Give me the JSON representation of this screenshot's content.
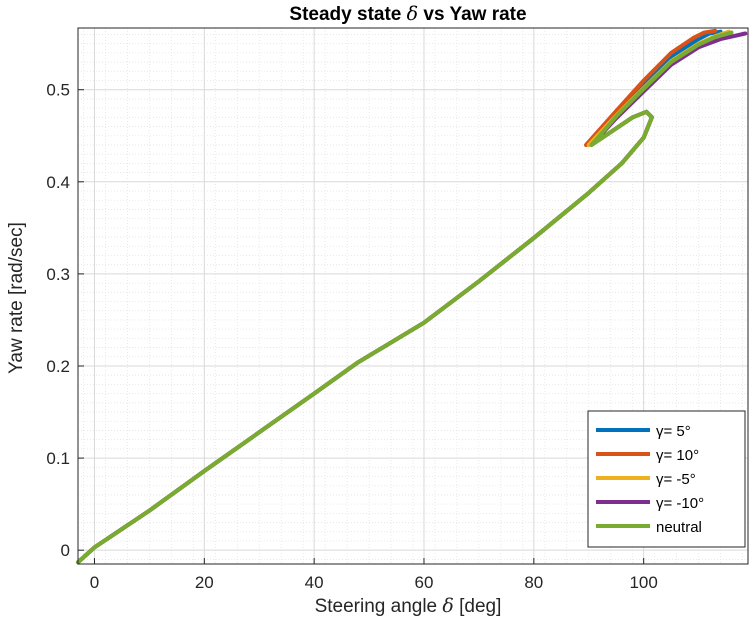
{
  "chart_data": {
    "type": "line",
    "title": "Steady state δ vs Yaw rate",
    "xlabel": "Steering angle δ [deg]",
    "ylabel": "Yaw rate [rad/sec]",
    "xlim": [
      -3,
      119
    ],
    "ylim": [
      -0.015,
      0.567
    ],
    "xticks": [
      0,
      20,
      40,
      60,
      80,
      100
    ],
    "yticks": [
      0,
      0.1,
      0.2,
      0.3,
      0.4,
      0.5
    ],
    "xtick_labels": [
      "0",
      "20",
      "40",
      "60",
      "80",
      "100"
    ],
    "ytick_labels": [
      "0",
      "0.1",
      "0.2",
      "0.3",
      "0.4",
      "0.5"
    ],
    "grid": true,
    "minor_grid": true,
    "legend_position": "bottom-right",
    "series": [
      {
        "name": "γ= 5°",
        "color": "#0072BD",
        "x": [
          -3,
          0,
          10,
          20,
          30,
          40,
          48,
          60,
          70,
          80,
          90,
          96,
          100,
          101.5,
          100.5,
          98,
          95,
          92,
          90,
          95,
          100,
          105,
          110,
          112,
          114
        ],
        "y": [
          -0.013,
          0.003,
          0.043,
          0.086,
          0.128,
          0.17,
          0.204,
          0.247,
          0.292,
          0.339,
          0.388,
          0.42,
          0.448,
          0.47,
          0.476,
          0.47,
          0.458,
          0.446,
          0.44,
          0.475,
          0.506,
          0.536,
          0.555,
          0.561,
          0.563
        ]
      },
      {
        "name": "γ= 10°",
        "color": "#D95319",
        "x": [
          -3,
          0,
          10,
          20,
          30,
          40,
          48,
          60,
          70,
          80,
          90,
          96,
          100,
          101.5,
          100.5,
          98,
          95,
          92,
          89.5,
          95,
          100,
          105,
          109,
          111,
          113
        ],
        "y": [
          -0.013,
          0.003,
          0.043,
          0.086,
          0.128,
          0.17,
          0.204,
          0.247,
          0.292,
          0.339,
          0.388,
          0.42,
          0.448,
          0.47,
          0.476,
          0.47,
          0.458,
          0.446,
          0.44,
          0.477,
          0.51,
          0.54,
          0.556,
          0.562,
          0.564
        ]
      },
      {
        "name": "γ= -5°",
        "color": "#EDB120",
        "x": [
          -3,
          0,
          10,
          20,
          30,
          40,
          48,
          60,
          70,
          80,
          90,
          96,
          100,
          101.5,
          100.5,
          98,
          95,
          92,
          90,
          95,
          100,
          105,
          110,
          113,
          115.5
        ],
        "y": [
          -0.013,
          0.003,
          0.043,
          0.086,
          0.128,
          0.17,
          0.204,
          0.247,
          0.292,
          0.339,
          0.388,
          0.42,
          0.448,
          0.47,
          0.476,
          0.47,
          0.458,
          0.446,
          0.44,
          0.472,
          0.502,
          0.531,
          0.55,
          0.558,
          0.563
        ]
      },
      {
        "name": "γ= -10°",
        "color": "#7E2F8E",
        "x": [
          -3,
          0,
          10,
          20,
          30,
          40,
          48,
          60,
          70,
          80,
          90,
          96,
          100,
          101.5,
          100.5,
          98,
          95,
          92,
          90.5,
          95,
          100,
          105,
          110,
          114,
          118.5
        ],
        "y": [
          -0.013,
          0.003,
          0.043,
          0.086,
          0.128,
          0.17,
          0.204,
          0.247,
          0.292,
          0.339,
          0.388,
          0.42,
          0.448,
          0.47,
          0.476,
          0.47,
          0.458,
          0.446,
          0.44,
          0.469,
          0.498,
          0.527,
          0.546,
          0.555,
          0.561
        ]
      },
      {
        "name": "neutral",
        "color": "#77AC30",
        "x": [
          -3,
          0,
          10,
          20,
          30,
          40,
          48,
          60,
          70,
          80,
          90,
          96,
          100,
          101.5,
          100.5,
          98,
          95,
          92,
          90.5,
          95,
          100,
          105,
          110,
          113,
          116
        ],
        "y": [
          -0.013,
          0.003,
          0.043,
          0.086,
          0.128,
          0.17,
          0.204,
          0.247,
          0.292,
          0.339,
          0.388,
          0.42,
          0.448,
          0.47,
          0.476,
          0.47,
          0.458,
          0.446,
          0.44,
          0.471,
          0.501,
          0.53,
          0.549,
          0.557,
          0.562
        ]
      }
    ]
  }
}
